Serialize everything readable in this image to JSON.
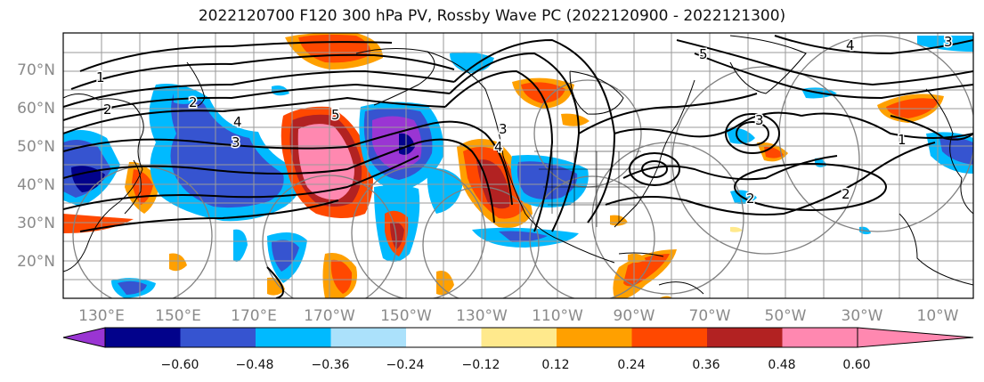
{
  "title": "2022120700 F120 300 hPa PV, Rossby Wave PC (2022120900 - 2022121300)",
  "lat_labels": [
    "70°N",
    "60°N",
    "50°N",
    "40°N",
    "30°N",
    "20°N"
  ],
  "lon_labels": [
    "130°E",
    "150°E",
    "170°E",
    "170°W",
    "150°W",
    "130°W",
    "110°W",
    "90°W",
    "70°W",
    "50°W",
    "30°W",
    "10°W"
  ],
  "colorbar": {
    "tick_labels": [
      "−0.60",
      "−0.48",
      "−0.36",
      "−0.24",
      "−0.12",
      "0.12",
      "0.24",
      "0.36",
      "0.48",
      "0.60"
    ],
    "colors": [
      "#9a35d3",
      "#02028b",
      "#3654d0",
      "#00baff",
      "#abe1fb",
      "#ffffff",
      "#ffe98c",
      "#ffa000",
      "#ff4800",
      "#b22222",
      "#ff88b0",
      "#ffffff"
    ]
  },
  "contour_labels": [
    "5",
    "4",
    "3",
    "2",
    "1",
    "2",
    "3",
    "4",
    "5",
    "4",
    "3",
    "2",
    "1",
    "2",
    "3"
  ],
  "colors": {
    "purple": "#9a35d3",
    "navy": "#02028b",
    "blue": "#3654d0",
    "cyan": "#00baff",
    "lightblue": "#abe1fb",
    "yellow": "#ffe98c",
    "orange": "#ffa000",
    "redorange": "#ff4800",
    "firebrick": "#b22222",
    "pink": "#ff88b0"
  }
}
